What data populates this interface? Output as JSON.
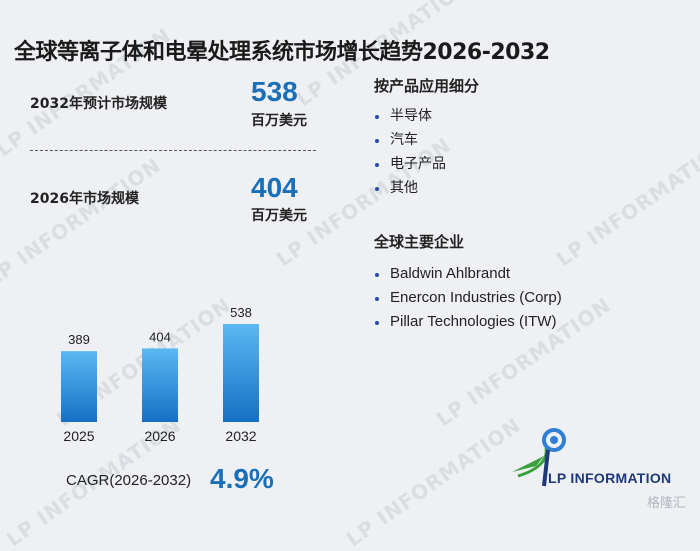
{
  "title": "全球等离子体和电晕处理系统市场增长趋势2026-2032",
  "stats": [
    {
      "label": "2032年预计市场规模",
      "value": "538",
      "unit": "百万美元"
    },
    {
      "label": "2026年市场规模",
      "value": "404",
      "unit": "百万美元"
    }
  ],
  "segments": {
    "title": "按产品应用细分",
    "items": [
      "半导体",
      "汽车",
      "电子产品",
      "其他"
    ]
  },
  "companies": {
    "title": "全球主要企业",
    "items": [
      "Baldwin Ahlbrandt",
      "Enercon Industries (Corp)",
      "Pillar Technologies (ITW)"
    ]
  },
  "cagr": {
    "label": "CAGR(2026-2032)",
    "value": "4.9%"
  },
  "logo": {
    "text": "LP INFORMATION"
  },
  "watermark": {
    "text": "LP INFORMATION",
    "corner_text": "格隆汇"
  },
  "colors": {
    "accent": "#1a6fb9",
    "bar_top": "#5bb8f2",
    "bar_bottom": "#1570c4"
  },
  "chart_data": {
    "type": "bar",
    "categories": [
      "2025",
      "2026",
      "2032"
    ],
    "values": [
      389,
      404,
      538
    ],
    "data_labels": [
      "389",
      "404",
      "538"
    ],
    "title": "",
    "xlabel": "",
    "ylabel": "",
    "ylim": [
      0,
      538
    ],
    "grid": false,
    "legend": "none"
  }
}
